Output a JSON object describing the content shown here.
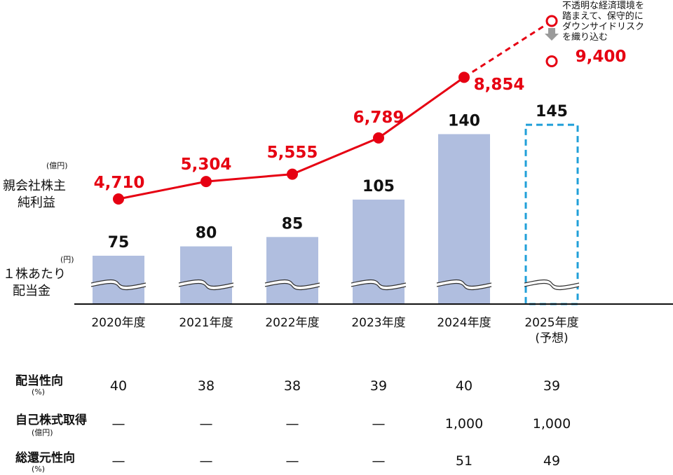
{
  "labels": {
    "profit_unit": "(億円)",
    "profit_label_line1": "親会社株主",
    "profit_label_line2": "純利益",
    "dividend_unit": "(円)",
    "dividend_label_line1": "１株あたり",
    "dividend_label_line2": "配当金",
    "forecast_note": [
      "不透明な経済環境を",
      "踏まえて、保守的に",
      "ダウンサイドリスク",
      "を織り込む"
    ]
  },
  "chart_data": {
    "type": "bar",
    "categories": [
      "2020年度",
      "2021年度",
      "2022年度",
      "2023年度",
      "2024年度",
      "2025年度"
    ],
    "category_sub": [
      "",
      "",
      "",
      "",
      "",
      "(予想)"
    ],
    "series": [
      {
        "values": [
          75,
          80,
          85,
          105,
          140,
          145
        ],
        "labels": [
          "75",
          "80",
          "85",
          "105",
          "140",
          "145"
        ],
        "color": "#b0bedf",
        "forecast_index": 5
      },
      {
        "values": [
          4710,
          5304,
          5555,
          6789,
          8854,
          9400
        ],
        "labels": [
          "4,710",
          "5,304",
          "5,555",
          "6,789",
          "8,854",
          "9,400"
        ],
        "color": "#e60012",
        "forecast_index": 5,
        "forecast_top_label": ""
      }
    ],
    "forecast_border_color": "#1f9fd8"
  },
  "table": {
    "rows": [
      {
        "label": "配当性向",
        "unit": "(%)",
        "values": [
          "40",
          "38",
          "38",
          "39",
          "40",
          "39"
        ]
      },
      {
        "label": "自己株式取得",
        "unit": "(億円)",
        "values": [
          "—",
          "—",
          "—",
          "—",
          "1,000",
          "1,000"
        ]
      },
      {
        "label": "総還元性向",
        "unit": "(%)",
        "values": [
          "—",
          "—",
          "—",
          "—",
          "51",
          "49"
        ]
      }
    ]
  }
}
